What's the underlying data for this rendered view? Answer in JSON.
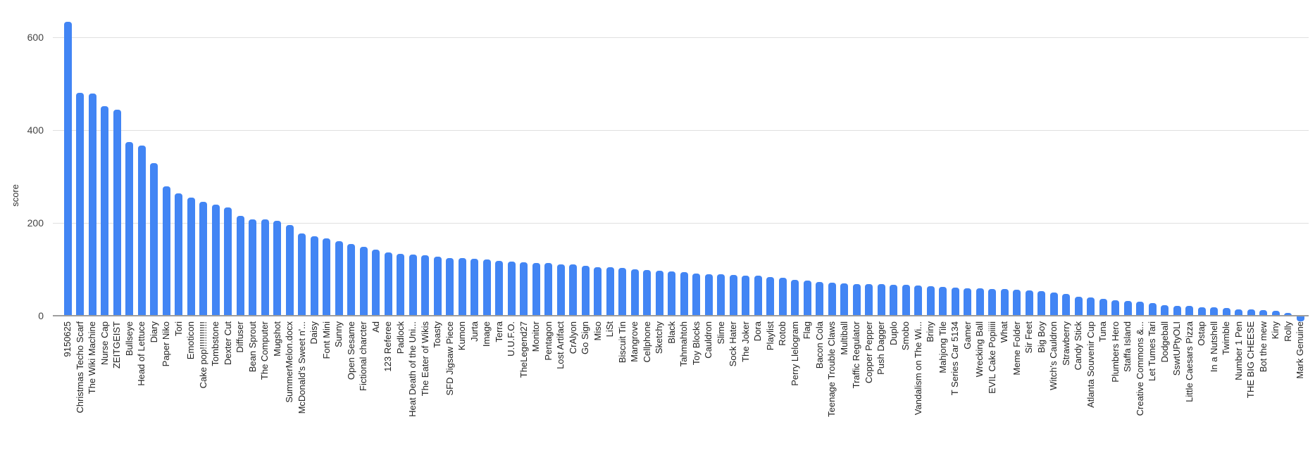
{
  "chart_data": {
    "type": "bar",
    "title": "",
    "xlabel": "",
    "ylabel": "score",
    "legend": "none",
    "grid": "horizontal",
    "yticks": [
      0,
      200,
      400,
      600
    ],
    "ylim": [
      0,
      660
    ],
    "bar_color": "#4285f4",
    "grid_color": "#e0e0e0",
    "axis_color": "#9e9e9e",
    "tick_label_color": "#444444",
    "category_label_color": "#222222",
    "categories": [
      "9150625",
      "Christmas Techo Scarf",
      "The Wiki Machine",
      "Nurse Cap",
      "ZEITGEIST",
      "Bullseye",
      "Head of Lettuce",
      "Diary",
      "Paper Niko",
      "Tori",
      "Emoticon",
      "Cake pop!!!!!!!!!!!",
      "Tombstone",
      "Dexter Cut",
      "Diffuser",
      "Bean Sprout",
      "The Computer",
      "Mugshot",
      "SummerMelon.docx",
      "McDonald's Sweet n'...",
      "Daisy",
      "Font Mini",
      "Sunny",
      "Open Sesame",
      "Fictional charcter",
      "Ad",
      "123 Referee",
      "Padlock",
      "Heat Death of the Uni...",
      "The Eater of Wikis",
      "Toasty",
      "SFD Jigsaw Piece",
      "Kumon",
      "Jurta",
      "Image",
      "Terra",
      "U.U.F.O.",
      "TheLegend27",
      "Monitor",
      "Pentagon",
      "Lost Artifact",
      "CrAlyon",
      "Go Sign",
      "Miso",
      "LiSt",
      "Biscuit Tin",
      "Mangrove",
      "Cellphone",
      "Sketchy",
      "Black",
      "Tahmahtoh",
      "Toy Blocks",
      "Cauldron",
      "Slime",
      "Sock Hater",
      "The Joker",
      "Dora",
      "Playlist",
      "Rotob",
      "Perry Llelogram",
      "Flag",
      "Bacon Cola",
      "Teenage Trouble Claws",
      "Multiball",
      "Traffic Regulator",
      "Copper Pepper",
      "Push Dagger",
      "Duplo",
      "Smobo",
      "Vandalism on The Wi...",
      "Briny",
      "Mahjong Tile",
      "T Series Car 5134",
      "Gamer",
      "Wrecking Ball",
      "EVIL Cake Popiiiii",
      "What",
      "Meme Folder",
      "Sir Feet",
      "Big Boy",
      "Witch's Cauldron",
      "Strawberry",
      "Candy Stick",
      "Atlanta Souvenir Cup",
      "Tuna",
      "Plumbers Hero",
      "Staffa Island",
      "Creative Commons &...",
      "Let Tumes Tari",
      "Dodgeball",
      "SswtUPtyOLI",
      "Little Caesars Pizza",
      "Ostap",
      "In a Nutshell",
      "Twimble",
      "Number 1 Pen",
      "THE BIG CHEESE",
      "Bot the mew",
      "Kiny",
      "Rolly",
      "Mark Genuine"
    ],
    "values": [
      633,
      480,
      479,
      452,
      444,
      374,
      366,
      329,
      279,
      263,
      254,
      245,
      240,
      233,
      215,
      208,
      207,
      205,
      196,
      178,
      172,
      166,
      160,
      154,
      148,
      142,
      136,
      134,
      132,
      130,
      127,
      125,
      124,
      123,
      121,
      118,
      116,
      115,
      114,
      113,
      111,
      110,
      108,
      105,
      104,
      103,
      100,
      99,
      97,
      95,
      94,
      91,
      90,
      89,
      88,
      87,
      86,
      84,
      82,
      77,
      76,
      73,
      71,
      70,
      69,
      68,
      68,
      67,
      66,
      65,
      64,
      62,
      60,
      59,
      59,
      58,
      57,
      56,
      54,
      53,
      50,
      47,
      41,
      40,
      37,
      33,
      32,
      31,
      27,
      23,
      22,
      21,
      19,
      19,
      17,
      14,
      14,
      12,
      10,
      6,
      -10
    ]
  }
}
